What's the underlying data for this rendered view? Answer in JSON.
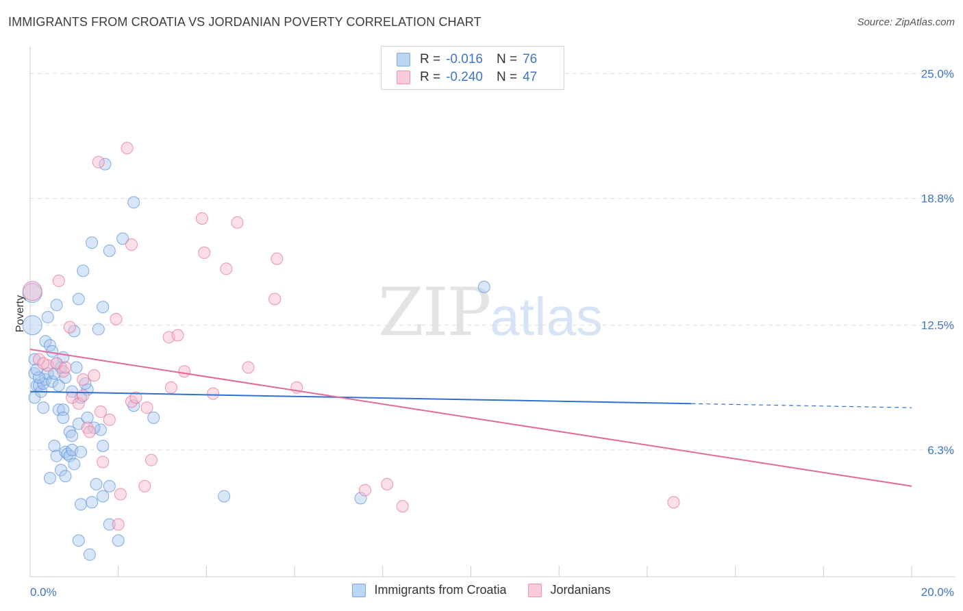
{
  "title": "IMMIGRANTS FROM CROATIA VS JORDANIAN POVERTY CORRELATION CHART",
  "source": "Source: ZipAtlas.com",
  "watermark": {
    "zip": "ZIP",
    "atlas": "atlas"
  },
  "legend": {
    "rows": [
      {
        "r_label": "R =",
        "r_value": "-0.016",
        "n_label": "N =",
        "n_value": "76",
        "color": "#a9c8f0"
      },
      {
        "r_label": "R =",
        "r_value": "-0.240",
        "n_label": "N =",
        "n_value": "47",
        "color": "#f5b8cb"
      }
    ]
  },
  "bottom_legend": {
    "series1": "Immigrants from Croatia",
    "series2": "Jordanians"
  },
  "chart_data": {
    "type": "scatter",
    "title": "IMMIGRANTS FROM CROATIA VS JORDANIAN POVERTY CORRELATION CHART",
    "ylabel": "Poverty",
    "xlabel": "",
    "xlim": [
      0,
      20
    ],
    "ylim": [
      0,
      26
    ],
    "x_tick_labels": [
      "0.0%",
      "20.0%"
    ],
    "y_ticks": [
      6.3,
      12.5,
      18.8,
      25.0
    ],
    "y_tick_labels": [
      "6.3%",
      "12.5%",
      "18.8%",
      "25.0%"
    ],
    "grid": true,
    "series": [
      {
        "name": "Immigrants from Croatia",
        "color": "#5b93d8",
        "fill": "#a9c8f0",
        "r": -0.016,
        "n": 76,
        "trend": {
          "x0": 0.0,
          "y0": 9.2,
          "x1": 15.0,
          "y1": 8.6,
          "dash_to_x": 20.0,
          "dash_to_y": 8.4
        },
        "points": [
          [
            0.05,
            14.1
          ],
          [
            0.05,
            12.5
          ],
          [
            0.1,
            10.8
          ],
          [
            0.1,
            10.1
          ],
          [
            0.15,
            9.5
          ],
          [
            0.1,
            8.9
          ],
          [
            0.2,
            9.5
          ],
          [
            0.25,
            9.2
          ],
          [
            0.3,
            9.6
          ],
          [
            0.35,
            9.8
          ],
          [
            0.4,
            10.1
          ],
          [
            0.35,
            11.7
          ],
          [
            0.45,
            11.5
          ],
          [
            0.4,
            12.9
          ],
          [
            0.6,
            13.5
          ],
          [
            0.5,
            9.7
          ],
          [
            0.65,
            9.5
          ],
          [
            0.55,
            10.1
          ],
          [
            0.7,
            10.4
          ],
          [
            0.75,
            10.9
          ],
          [
            0.8,
            9.9
          ],
          [
            0.65,
            8.3
          ],
          [
            0.75,
            8.3
          ],
          [
            0.75,
            7.9
          ],
          [
            0.9,
            7.2
          ],
          [
            0.95,
            7.0
          ],
          [
            0.55,
            6.5
          ],
          [
            0.6,
            6.0
          ],
          [
            0.8,
            6.2
          ],
          [
            0.85,
            6.1
          ],
          [
            0.9,
            6.0
          ],
          [
            0.95,
            6.3
          ],
          [
            1.0,
            5.6
          ],
          [
            0.7,
            5.3
          ],
          [
            0.8,
            5.0
          ],
          [
            0.45,
            4.9
          ],
          [
            1.15,
            6.2
          ],
          [
            1.1,
            7.6
          ],
          [
            1.15,
            8.9
          ],
          [
            1.3,
            9.3
          ],
          [
            1.05,
            10.4
          ],
          [
            1.0,
            12.2
          ],
          [
            1.1,
            13.8
          ],
          [
            1.2,
            15.2
          ],
          [
            1.4,
            16.6
          ],
          [
            1.55,
            12.3
          ],
          [
            1.65,
            13.4
          ],
          [
            1.8,
            16.2
          ],
          [
            1.8,
            4.5
          ],
          [
            1.6,
            7.3
          ],
          [
            1.65,
            6.5
          ],
          [
            1.45,
            7.4
          ],
          [
            1.3,
            7.9
          ],
          [
            1.5,
            4.6
          ],
          [
            1.65,
            4.0
          ],
          [
            1.4,
            3.7
          ],
          [
            1.15,
            3.6
          ],
          [
            1.8,
            2.6
          ],
          [
            2.0,
            1.8
          ],
          [
            1.1,
            1.8
          ],
          [
            1.35,
            1.1
          ],
          [
            1.7,
            20.5
          ],
          [
            2.35,
            18.6
          ],
          [
            2.35,
            8.5
          ],
          [
            2.1,
            16.8
          ],
          [
            2.8,
            7.9
          ],
          [
            4.4,
            4.0
          ],
          [
            7.5,
            3.9
          ],
          [
            10.3,
            14.4
          ],
          [
            0.3,
            8.4
          ],
          [
            0.2,
            9.9
          ],
          [
            0.5,
            11.2
          ],
          [
            0.95,
            9.2
          ],
          [
            1.25,
            9.6
          ],
          [
            0.6,
            10.6
          ],
          [
            0.15,
            10.3
          ]
        ]
      },
      {
        "name": "Jordanians",
        "color": "#e8729a",
        "fill": "#f5b8cb",
        "r": -0.24,
        "n": 47,
        "trend": {
          "x0": 0.0,
          "y0": 11.3,
          "x1": 20.0,
          "y1": 4.5
        },
        "points": [
          [
            0.05,
            14.2
          ],
          [
            0.2,
            10.8
          ],
          [
            0.4,
            10.5
          ],
          [
            0.6,
            10.6
          ],
          [
            0.65,
            14.7
          ],
          [
            0.75,
            10.2
          ],
          [
            0.8,
            10.4
          ],
          [
            0.9,
            12.4
          ],
          [
            0.95,
            8.9
          ],
          [
            1.1,
            8.6
          ],
          [
            1.2,
            9.0
          ],
          [
            1.3,
            7.4
          ],
          [
            1.35,
            7.2
          ],
          [
            1.45,
            10.0
          ],
          [
            1.6,
            8.2
          ],
          [
            1.65,
            5.7
          ],
          [
            1.8,
            7.8
          ],
          [
            1.95,
            12.8
          ],
          [
            2.05,
            4.1
          ],
          [
            2.3,
            8.7
          ],
          [
            2.4,
            8.9
          ],
          [
            2.6,
            4.5
          ],
          [
            2.65,
            8.4
          ],
          [
            2.75,
            5.8
          ],
          [
            3.15,
            11.9
          ],
          [
            3.2,
            9.4
          ],
          [
            3.35,
            12.0
          ],
          [
            3.5,
            10.2
          ],
          [
            3.9,
            17.8
          ],
          [
            3.95,
            16.1
          ],
          [
            4.15,
            9.1
          ],
          [
            4.45,
            15.3
          ],
          [
            4.7,
            17.6
          ],
          [
            4.95,
            10.4
          ],
          [
            5.55,
            13.8
          ],
          [
            5.6,
            15.8
          ],
          [
            6.05,
            9.4
          ],
          [
            7.6,
            4.3
          ],
          [
            8.1,
            4.6
          ],
          [
            8.45,
            3.5
          ],
          [
            14.6,
            3.7
          ],
          [
            2.2,
            21.3
          ],
          [
            1.55,
            20.6
          ],
          [
            2.3,
            16.5
          ],
          [
            2.0,
            2.6
          ],
          [
            0.3,
            10.6
          ],
          [
            1.2,
            9.8
          ]
        ]
      }
    ]
  }
}
